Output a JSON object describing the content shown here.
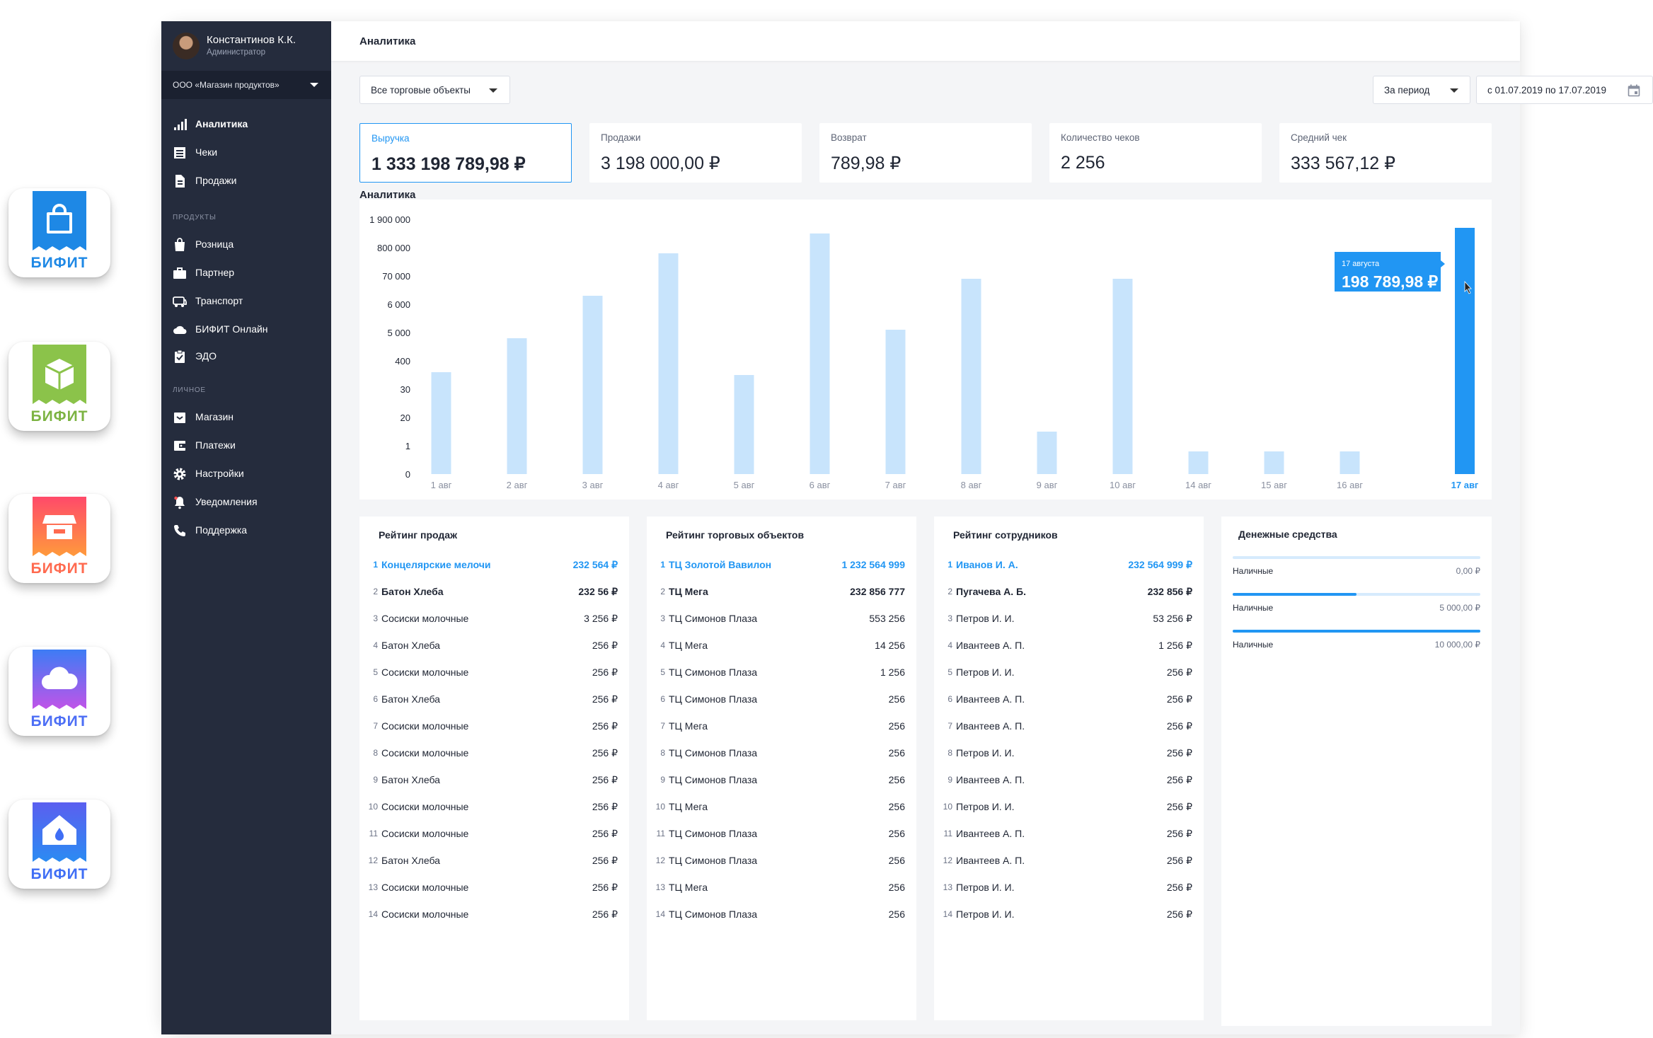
{
  "brand_icons": [
    {
      "name": "shopping-bag-icon",
      "label": "БИФИТ",
      "color": "#1e88e5"
    },
    {
      "name": "box-icon",
      "label": "БИФИТ",
      "color": "#8bc34a"
    },
    {
      "name": "store-icon",
      "label": "БИФИТ",
      "color": "#ff5a4f"
    },
    {
      "name": "cloud-icon",
      "label": "БИФИТ",
      "color": "#4c6ef5"
    },
    {
      "name": "home-drop-icon",
      "label": "БИФИТ",
      "color": "#3f6ef5"
    }
  ],
  "user": {
    "name": "Константинов К.К.",
    "role": "Администратор"
  },
  "org": {
    "label": "ООО «Магазин продуктов»"
  },
  "sidebar": {
    "main_items": [
      {
        "label": "Аналитика",
        "icon": "bar-chart-icon",
        "active": true
      },
      {
        "label": "Чеки",
        "icon": "receipt-list-icon",
        "active": false
      },
      {
        "label": "Продажи",
        "icon": "document-icon",
        "active": false
      }
    ],
    "products_title": "ПРОДУКТЫ",
    "products_items": [
      {
        "label": "Розница",
        "icon": "shopping-bag-icon"
      },
      {
        "label": "Партнер",
        "icon": "briefcase-icon"
      },
      {
        "label": "Транспорт",
        "icon": "bus-icon"
      },
      {
        "label": "БИФИТ Онлайн",
        "icon": "cloud-icon"
      },
      {
        "label": "ЭДО",
        "icon": "clipboard-check-icon"
      }
    ],
    "personal_title": "ЛИЧНОЕ",
    "personal_items": [
      {
        "label": "Магазин",
        "icon": "store-box-icon"
      },
      {
        "label": "Платежи",
        "icon": "wallet-icon"
      },
      {
        "label": "Настройки",
        "icon": "gear-icon"
      },
      {
        "label": "Уведомления",
        "icon": "bell-icon"
      },
      {
        "label": "Поддержка",
        "icon": "phone-icon"
      }
    ]
  },
  "header": {
    "title": "Аналитика"
  },
  "filters": {
    "objects": "Все торговые объекты",
    "period": "За период",
    "date_range": "с 01.07.2019 по 17.07.2019"
  },
  "kpis": [
    {
      "label": "Выручка",
      "value": "1 333 198 789,98 ₽",
      "active": true
    },
    {
      "label": "Продажи",
      "value": "3 198 000,00 ₽",
      "active": false
    },
    {
      "label": "Возврат",
      "value": "789,98 ₽",
      "active": false
    },
    {
      "label": "Количество чеков",
      "value": "2 256",
      "active": false
    },
    {
      "label": "Средний чек",
      "value": "333 567,12 ₽",
      "active": false
    }
  ],
  "chart_title": "Аналитика",
  "chart_data": {
    "type": "bar",
    "title": "Аналитика",
    "y_tick_labels": [
      "0",
      "1",
      "20",
      "30",
      "400",
      "5 000",
      "6 000",
      "70 000",
      "800 000",
      "1 900 000"
    ],
    "categories": [
      "1 авг",
      "2 авг",
      "3 авг",
      "4 авг",
      "5 авг",
      "6 авг",
      "7 авг",
      "8 авг",
      "9 авг",
      "10 авг",
      "14 авг",
      "15 авг",
      "16 авг",
      "17 авг"
    ],
    "values_tick_scale": [
      3.6,
      4.8,
      6.3,
      7.8,
      3.5,
      8.5,
      5.1,
      6.9,
      1.5,
      6.9,
      0.8,
      0.8,
      0.8,
      8.7
    ],
    "highlighted": "17 авг",
    "tooltip": {
      "date": "17 августа",
      "value": "198 789,98 ₽"
    },
    "colors": {
      "bar": "#c8e4fc",
      "highlight": "#2196f3"
    }
  },
  "rankings": [
    {
      "title": "Рейтинг продаж",
      "rows": [
        [
          "1",
          "Концелярские мелочи",
          "232 564 ₽"
        ],
        [
          "2",
          "Батон Хлеба",
          "232 56 ₽"
        ],
        [
          "3",
          "Сосиски молочные",
          "3 256 ₽"
        ],
        [
          "4",
          "Батон Хлеба",
          "256 ₽"
        ],
        [
          "5",
          "Сосиски молочные",
          "256 ₽"
        ],
        [
          "6",
          "Батон Хлеба",
          "256 ₽"
        ],
        [
          "7",
          "Сосиски молочные",
          "256 ₽"
        ],
        [
          "8",
          "Сосиски молочные",
          "256 ₽"
        ],
        [
          "9",
          "Батон Хлеба",
          "256 ₽"
        ],
        [
          "10",
          "Сосиски молочные",
          "256 ₽"
        ],
        [
          "11",
          "Сосиски молочные",
          "256 ₽"
        ],
        [
          "12",
          "Батон Хлеба",
          "256 ₽"
        ],
        [
          "13",
          "Сосиски молочные",
          "256 ₽"
        ],
        [
          "14",
          "Сосиски молочные",
          "256 ₽"
        ]
      ]
    },
    {
      "title": "Рейтинг торговых объектов",
      "rows": [
        [
          "1",
          "ТЦ Золотой Вавилон",
          "1 232 564 999"
        ],
        [
          "2",
          "ТЦ Мега",
          "232 856 777"
        ],
        [
          "3",
          "ТЦ Симонов Плаза",
          "553 256"
        ],
        [
          "4",
          "ТЦ Мега",
          "14 256"
        ],
        [
          "5",
          "ТЦ Симонов Плаза",
          "1 256"
        ],
        [
          "6",
          "ТЦ Симонов Плаза",
          "256"
        ],
        [
          "7",
          "ТЦ Мега",
          "256"
        ],
        [
          "8",
          "ТЦ Симонов Плаза",
          "256"
        ],
        [
          "9",
          "ТЦ Симонов Плаза",
          "256"
        ],
        [
          "10",
          "ТЦ Мега",
          "256"
        ],
        [
          "11",
          "ТЦ Симонов Плаза",
          "256"
        ],
        [
          "12",
          "ТЦ Симонов Плаза",
          "256"
        ],
        [
          "13",
          "ТЦ Мега",
          "256"
        ],
        [
          "14",
          "ТЦ Симонов Плаза",
          "256"
        ]
      ]
    },
    {
      "title": "Рейтинг сотрудников",
      "rows": [
        [
          "1",
          "Иванов И. А.",
          "232 564 999 ₽"
        ],
        [
          "2",
          "Пугачева А. Б.",
          "232 856 ₽"
        ],
        [
          "3",
          "Петров И. И.",
          "53 256 ₽"
        ],
        [
          "4",
          "Ивантеев А. П.",
          "1 256 ₽"
        ],
        [
          "5",
          "Петров И. И.",
          "256 ₽"
        ],
        [
          "6",
          "Ивантеев А. П.",
          "256 ₽"
        ],
        [
          "7",
          "Ивантеев А. П.",
          "256 ₽"
        ],
        [
          "8",
          "Петров И. И.",
          "256 ₽"
        ],
        [
          "9",
          "Ивантеев А. П.",
          "256 ₽"
        ],
        [
          "10",
          "Петров И. И.",
          "256 ₽"
        ],
        [
          "11",
          "Ивантеев А. П.",
          "256 ₽"
        ],
        [
          "12",
          "Ивантеев А. П.",
          "256 ₽"
        ],
        [
          "13",
          "Петров И. И.",
          "256 ₽"
        ],
        [
          "14",
          "Петров И. И.",
          "256 ₽"
        ]
      ]
    }
  ],
  "cash": {
    "title": "Денежные средства",
    "items": [
      {
        "label": "Наличные",
        "value": "0,00 ₽",
        "fill": 0.0
      },
      {
        "label": "Наличные",
        "value": "5 000,00 ₽",
        "fill": 0.5
      },
      {
        "label": "Наличные",
        "value": "10 000,00 ₽",
        "fill": 1.0
      }
    ]
  }
}
